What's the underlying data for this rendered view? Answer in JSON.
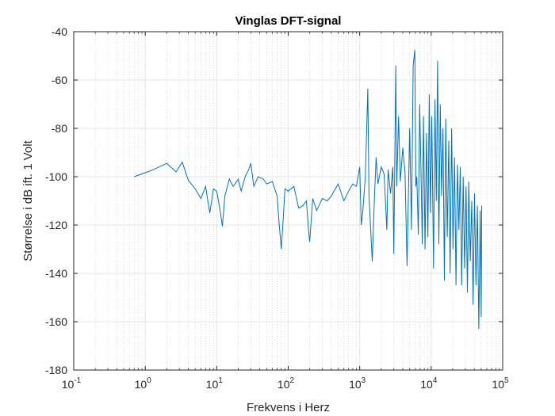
{
  "chart_data": {
    "type": "line",
    "title": "Vinglas DFT-signal",
    "xlabel": "Frekvens i Herz",
    "ylabel": "Størrelse i dB ift. 1 Volt",
    "xscale": "log",
    "xlim": [
      0.1,
      100000
    ],
    "ylim": [
      -180,
      -40
    ],
    "x_tick_labels": [
      {
        "base": "10",
        "exp": "-1"
      },
      {
        "base": "10",
        "exp": "0"
      },
      {
        "base": "10",
        "exp": "1"
      },
      {
        "base": "10",
        "exp": "2"
      },
      {
        "base": "10",
        "exp": "3"
      },
      {
        "base": "10",
        "exp": "4"
      },
      {
        "base": "10",
        "exp": "5"
      }
    ],
    "y_ticks": [
      -180,
      -160,
      -140,
      -120,
      -100,
      -80,
      -60,
      -40
    ],
    "grid": true,
    "minor_grid_x": true,
    "line_color": "#0072BD",
    "series": [
      {
        "values": [
          [
            0.7,
            -100
          ],
          [
            1.2,
            -97.5
          ],
          [
            2.0,
            -94.5
          ],
          [
            2.7,
            -98
          ],
          [
            3.3,
            -94
          ],
          [
            4.0,
            -101.5
          ],
          [
            5.0,
            -105
          ],
          [
            6.0,
            -109
          ],
          [
            7.0,
            -104
          ],
          [
            7.5,
            -110
          ],
          [
            8.0,
            -115
          ],
          [
            9.0,
            -105
          ],
          [
            10.0,
            -106
          ],
          [
            11.0,
            -113
          ],
          [
            12.0,
            -120.5
          ],
          [
            13.0,
            -108
          ],
          [
            15.0,
            -101
          ],
          [
            17.0,
            -104
          ],
          [
            20.0,
            -101
          ],
          [
            22.0,
            -106
          ],
          [
            25.0,
            -100
          ],
          [
            28.0,
            -97
          ],
          [
            30.0,
            -94.5
          ],
          [
            33.0,
            -104
          ],
          [
            38.0,
            -100
          ],
          [
            45.0,
            -101
          ],
          [
            50.0,
            -103
          ],
          [
            60.0,
            -102
          ],
          [
            70.0,
            -108
          ],
          [
            75.0,
            -120
          ],
          [
            80.0,
            -130
          ],
          [
            85.0,
            -118
          ],
          [
            90.0,
            -105
          ],
          [
            100.0,
            -106
          ],
          [
            120.0,
            -104
          ],
          [
            140.0,
            -113
          ],
          [
            160.0,
            -112
          ],
          [
            180.0,
            -110
          ],
          [
            190.0,
            -120
          ],
          [
            200.0,
            -127
          ],
          [
            220.0,
            -109
          ],
          [
            250.0,
            -114
          ],
          [
            300.0,
            -109
          ],
          [
            350.0,
            -110
          ],
          [
            400.0,
            -108
          ],
          [
            500.0,
            -103
          ],
          [
            600.0,
            -110
          ],
          [
            700.0,
            -106
          ],
          [
            800.0,
            -103
          ],
          [
            900.0,
            -104
          ],
          [
            1000.0,
            -96
          ],
          [
            1050.0,
            -120
          ],
          [
            1100.0,
            -115
          ],
          [
            1200.0,
            -100
          ],
          [
            1300.0,
            -63.5
          ],
          [
            1350.0,
            -108
          ],
          [
            1500.0,
            -135
          ],
          [
            1600.0,
            -110
          ],
          [
            1700.0,
            -92
          ],
          [
            1800.0,
            -103
          ],
          [
            2000.0,
            -96
          ],
          [
            2200.0,
            -99
          ],
          [
            2400.0,
            -122
          ],
          [
            2500.0,
            -97
          ],
          [
            2700.0,
            -107
          ],
          [
            2900.0,
            -96
          ],
          [
            3000.0,
            -132
          ],
          [
            3200.0,
            -54
          ],
          [
            3300.0,
            -104
          ],
          [
            3500.0,
            -75
          ],
          [
            3700.0,
            -102
          ],
          [
            4000.0,
            -88
          ],
          [
            4300.0,
            -98
          ],
          [
            4600.0,
            -137
          ],
          [
            5000.0,
            -80
          ],
          [
            5300.0,
            -122
          ],
          [
            5600.0,
            -54
          ],
          [
            5900.0,
            -47.5
          ],
          [
            6100.0,
            -104
          ],
          [
            6300.0,
            -100
          ],
          [
            6600.0,
            -124
          ],
          [
            6900.0,
            -70
          ],
          [
            7200.0,
            -98
          ],
          [
            7500.0,
            -128
          ],
          [
            7800.0,
            -75
          ],
          [
            8200.0,
            -130
          ],
          [
            8600.0,
            -82
          ],
          [
            9000.0,
            -125
          ],
          [
            9400.0,
            -66
          ],
          [
            9800.0,
            -115
          ],
          [
            10200.0,
            -75
          ],
          [
            10800.0,
            -138
          ],
          [
            11300.0,
            -68
          ],
          [
            11800.0,
            -110
          ],
          [
            12300.0,
            -52
          ],
          [
            12800.0,
            -128
          ],
          [
            13400.0,
            -70
          ],
          [
            14000.0,
            -108
          ],
          [
            14600.0,
            -80
          ],
          [
            15300.0,
            -143
          ],
          [
            16000.0,
            -76
          ],
          [
            16800.0,
            -125
          ],
          [
            17600.0,
            -85
          ],
          [
            18400.0,
            -140
          ],
          [
            19300.0,
            -80
          ],
          [
            20200.0,
            -130
          ],
          [
            21200.0,
            -92
          ],
          [
            22200.0,
            -145
          ],
          [
            23300.0,
            -95
          ],
          [
            24400.0,
            -122
          ],
          [
            25500.0,
            -96
          ],
          [
            26700.0,
            -145
          ],
          [
            28000.0,
            -100
          ],
          [
            29300.0,
            -138
          ],
          [
            30700.0,
            -104
          ],
          [
            32100.0,
            -148
          ],
          [
            33600.0,
            -102
          ],
          [
            35200.0,
            -135
          ],
          [
            36900.0,
            -110
          ],
          [
            38600.0,
            -153
          ],
          [
            40400.0,
            -107
          ],
          [
            42300.0,
            -145
          ],
          [
            44300.0,
            -112
          ],
          [
            46400.0,
            -163
          ],
          [
            48600.0,
            -114
          ],
          [
            50000.0,
            -158
          ],
          [
            51000.0,
            -112
          ]
        ]
      }
    ]
  }
}
